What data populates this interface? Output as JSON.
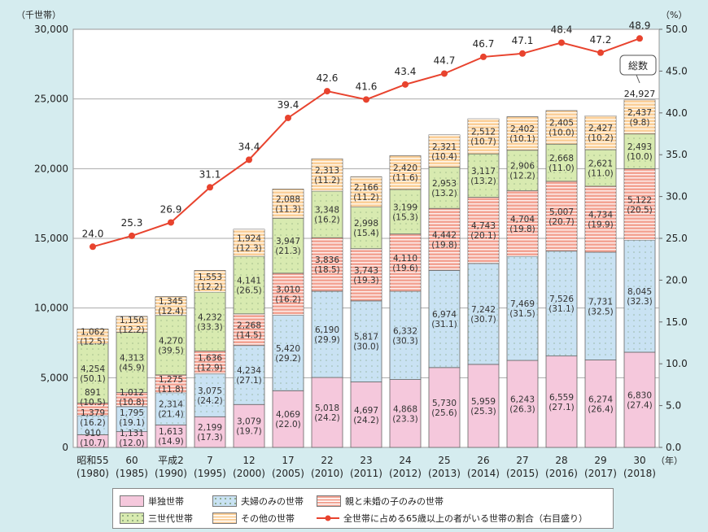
{
  "chart_data": {
    "type": "bar",
    "stacked": true,
    "y_unit_label": "（千世帯）",
    "y2_unit_label": "（%）",
    "x_unit_label": "（年）",
    "ylim": [
      0,
      30000
    ],
    "y2lim": [
      0,
      50
    ],
    "yticks": [
      "0",
      "5,000",
      "10,000",
      "15,000",
      "20,000",
      "25,000",
      "30,000"
    ],
    "y2ticks": [
      "0.0",
      "5.0",
      "10.0",
      "15.0",
      "20.0",
      "25.0",
      "30.0",
      "35.0",
      "40.0",
      "45.0",
      "50.0"
    ],
    "grid": true,
    "categories": [
      {
        "era": "昭和55",
        "year": "(1980)"
      },
      {
        "era": "60",
        "year": "(1985)"
      },
      {
        "era": "平成2",
        "year": "(1990)"
      },
      {
        "era": "7",
        "year": "(1995)"
      },
      {
        "era": "12",
        "year": "(2000)"
      },
      {
        "era": "17",
        "year": "(2005)"
      },
      {
        "era": "22",
        "year": "(2010)"
      },
      {
        "era": "23",
        "year": "(2011)"
      },
      {
        "era": "24",
        "year": "(2012)"
      },
      {
        "era": "25",
        "year": "(2013)"
      },
      {
        "era": "26",
        "year": "(2014)"
      },
      {
        "era": "27",
        "year": "(2015)"
      },
      {
        "era": "28",
        "year": "(2016)"
      },
      {
        "era": "29",
        "year": "(2017)"
      },
      {
        "era": "30",
        "year": "(2018)"
      }
    ],
    "series": [
      {
        "name": "単独世帯",
        "color": "#f5c8dc",
        "pattern": "none",
        "values": [
          910,
          1131,
          1613,
          2199,
          3079,
          4069,
          5018,
          4697,
          4868,
          5730,
          5959,
          6243,
          6559,
          6274,
          6830
        ],
        "pcts": [
          "10.7",
          "12.0",
          "14.9",
          "17.3",
          "19.7",
          "22.0",
          "24.2",
          "24.2",
          "23.3",
          "25.6",
          "25.3",
          "26.3",
          "27.1",
          "26.4",
          "27.4"
        ]
      },
      {
        "name": "夫婦のみの世帯",
        "color": "#c9e2f3",
        "pattern": "dots",
        "values": [
          1379,
          1795,
          2314,
          3075,
          4234,
          5420,
          6190,
          5817,
          6332,
          6974,
          7242,
          7469,
          7526,
          7731,
          8045
        ],
        "pcts": [
          "16.2",
          "19.1",
          "21.4",
          "24.2",
          "27.1",
          "29.2",
          "29.9",
          "30.0",
          "30.3",
          "31.1",
          "30.7",
          "31.5",
          "31.1",
          "32.5",
          "32.3"
        ]
      },
      {
        "name": "親と未婚の子のみの世帯",
        "color": "#f3a393",
        "pattern": "stripes",
        "values": [
          891,
          1012,
          1275,
          1636,
          2268,
          3010,
          3836,
          3743,
          4110,
          4442,
          4743,
          4704,
          5007,
          4734,
          5122
        ],
        "pcts": [
          "10.5",
          "10.8",
          "11.8",
          "12.9",
          "14.5",
          "16.2",
          "18.5",
          "19.3",
          "19.6",
          "19.8",
          "20.1",
          "19.8",
          "20.7",
          "19.9",
          "20.5"
        ]
      },
      {
        "name": "三世代世帯",
        "color": "#d8eab0",
        "pattern": "dots",
        "values": [
          4254,
          4313,
          4270,
          4232,
          4141,
          3947,
          3348,
          2998,
          3199,
          2953,
          3117,
          2906,
          2668,
          2621,
          2493
        ],
        "pcts": [
          "50.1",
          "45.9",
          "39.5",
          "33.3",
          "26.5",
          "21.3",
          "16.2",
          "15.4",
          "15.3",
          "13.2",
          "13.2",
          "12.2",
          "11.0",
          "11.0",
          "10.0"
        ]
      },
      {
        "name": "その他の世帯",
        "color": "#fbcf98",
        "pattern": "stripes",
        "values": [
          1062,
          1150,
          1345,
          1553,
          1924,
          2088,
          2313,
          2166,
          2420,
          2321,
          2512,
          2402,
          2405,
          2427,
          2437
        ],
        "pcts": [
          "12.5",
          "12.2",
          "12.4",
          "12.2",
          "12.3",
          "11.3",
          "11.2",
          "11.2",
          "11.6",
          "10.4",
          "10.7",
          "10.1",
          "10.0",
          "10.2",
          "9.8"
        ]
      }
    ],
    "line": {
      "name": "全世帯に占める65歳以上の者がいる世帯の割合（右目盛り）",
      "color": "#e8432e",
      "axis": "right",
      "values": [
        24.0,
        25.3,
        26.9,
        31.1,
        34.4,
        39.4,
        42.6,
        41.6,
        43.4,
        44.7,
        46.7,
        47.1,
        48.4,
        47.2,
        48.9
      ],
      "labels": [
        "24.0",
        "25.3",
        "26.9",
        "31.1",
        "34.4",
        "39.4",
        "42.6",
        "41.6",
        "43.4",
        "44.7",
        "46.7",
        "47.1",
        "48.4",
        "47.2",
        "48.9"
      ]
    },
    "annotation": {
      "label": "総数",
      "value": "24,927"
    }
  }
}
